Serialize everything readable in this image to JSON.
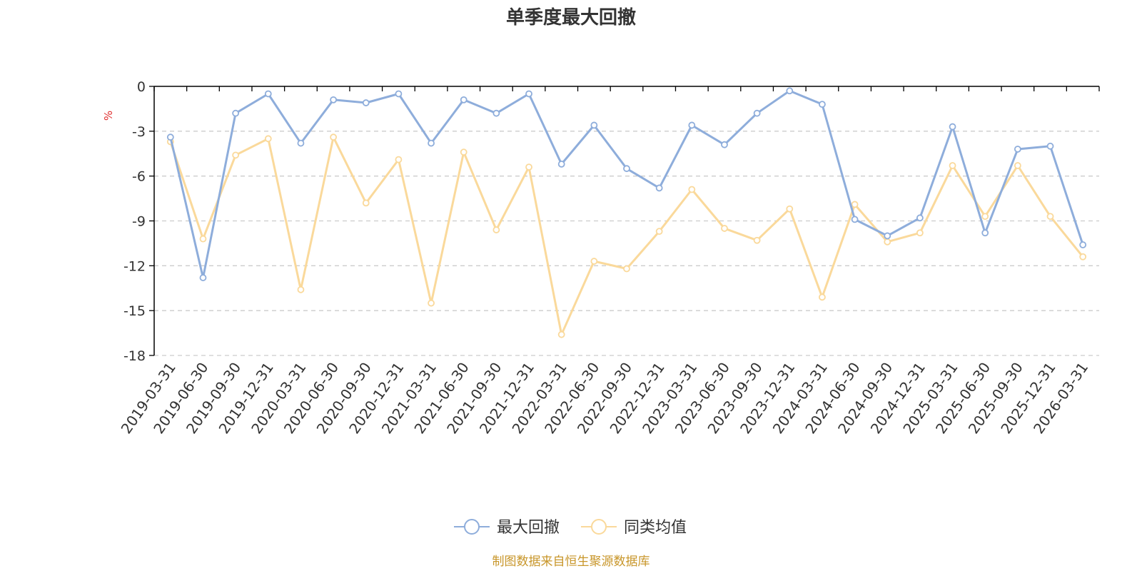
{
  "chart_data": {
    "type": "line",
    "title": "单季度最大回撤",
    "ylabel": "%",
    "ylim": [
      -18,
      0
    ],
    "yticks": [
      0,
      -3,
      -6,
      -9,
      -12,
      -15,
      -18
    ],
    "grid": "horizontal-dashed",
    "legend_position": "bottom-center",
    "categories": [
      "2019-03-31",
      "2019-06-30",
      "2019-09-30",
      "2019-12-31",
      "2020-03-31",
      "2020-06-30",
      "2020-09-30",
      "2020-12-31",
      "2021-03-31",
      "2021-06-30",
      "2021-09-30",
      "2021-12-31",
      "2022-03-31",
      "2022-06-30",
      "2022-09-30",
      "2022-12-31",
      "2023-03-31",
      "2023-06-30",
      "2023-09-30",
      "2023-12-31",
      "2024-03-31",
      "2024-06-30",
      "2024-09-30",
      "2024-12-31",
      "2025-03-31",
      "2025-06-30",
      "2025-09-30",
      "2025-12-31",
      "2026-03-31"
    ],
    "series": [
      {
        "name": "最大回撤",
        "color": "#8eaddb",
        "values": [
          -3.4,
          -12.8,
          -1.8,
          -0.5,
          -3.8,
          -0.9,
          -1.1,
          -0.5,
          -3.8,
          -0.9,
          -1.8,
          -0.5,
          -5.2,
          -2.6,
          -5.5,
          -6.8,
          -2.6,
          -3.9,
          -1.8,
          -0.3,
          -1.2,
          -8.9,
          -10.0,
          -8.8,
          -2.7,
          -9.8,
          -4.2,
          -4.0,
          -10.6
        ]
      },
      {
        "name": "同类均值",
        "color": "#fad99b",
        "values": [
          -3.7,
          -10.2,
          -4.6,
          -3.5,
          -13.6,
          -3.4,
          -7.8,
          -4.9,
          -14.5,
          -4.4,
          -9.6,
          -5.4,
          -16.6,
          -11.7,
          -12.2,
          -9.7,
          -6.9,
          -9.5,
          -10.3,
          -8.2,
          -14.1,
          -7.9,
          -10.4,
          -9.8,
          -5.3,
          -8.7,
          -5.3,
          -8.7,
          -11.4
        ]
      }
    ]
  },
  "source_note": "制图数据来自恒生聚源数据库",
  "colors": {
    "axis": "#000000",
    "grid": "#cccccc",
    "unit": "#e03030",
    "source": "#c8962a"
  }
}
